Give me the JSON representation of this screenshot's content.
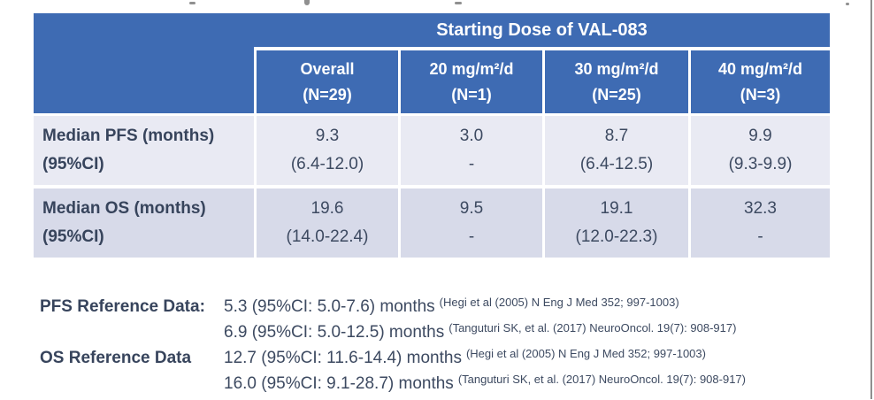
{
  "table": {
    "title": "Starting Dose of VAL-083",
    "columns": [
      {
        "line1": "Overall",
        "line2": "(N=29)"
      },
      {
        "line1": "20 mg/m²/d",
        "line2": "(N=1)"
      },
      {
        "line1": "30 mg/m²/d",
        "line2": "(N=25)"
      },
      {
        "line1": "40 mg/m²/d",
        "line2": "(N=3)"
      }
    ],
    "rows": [
      {
        "label_line1": "Median PFS (months)",
        "label_line2": "(95%CI)",
        "cells": [
          {
            "value": "9.3",
            "ci": "(6.4-12.0)"
          },
          {
            "value": "3.0",
            "ci": "-"
          },
          {
            "value": "8.7",
            "ci": "(6.4-12.5)"
          },
          {
            "value": "9.9",
            "ci": "(9.3-9.9)"
          }
        ]
      },
      {
        "label_line1": "Median OS (months)",
        "label_line2": "(95%CI)",
        "cells": [
          {
            "value": "19.6",
            "ci": "(14.0-22.4)"
          },
          {
            "value": "9.5",
            "ci": "-"
          },
          {
            "value": "19.1",
            "ci": "(12.0-22.3)"
          },
          {
            "value": "32.3",
            "ci": "-"
          }
        ]
      }
    ]
  },
  "references": {
    "pfs_label": "PFS Reference Data:",
    "os_label": "OS Reference Data",
    "lines": [
      {
        "value": "5.3 (95%CI: 5.0-7.6) months",
        "citation": "(Hegi  et al (2005) N Eng J Med 352; 997-1003)"
      },
      {
        "value": "6.9 (95%CI: 5.0-12.5) months",
        "citation": "(Tanguturi SK, et al. (2017) NeuroOncol. 19(7): 908-917)"
      },
      {
        "value": "12.7 (95%CI: 11.6-14.4) months",
        "citation": "(Hegi  et al (2005) N Eng J Med 352; 997-1003)"
      },
      {
        "value": "16.0 (95%CI: 9.1-28.7) months",
        "citation": "(Tanguturi SK, et al. (2017) NeuroOncol. 19(7): 908-917)"
      }
    ]
  },
  "colors": {
    "header_blue": "#3e6bb3",
    "row_light": "#e9eaf3",
    "row_dark": "#d7dae9",
    "text_dark": "#3d4a61",
    "edge_gray": "#8f8f8f"
  }
}
